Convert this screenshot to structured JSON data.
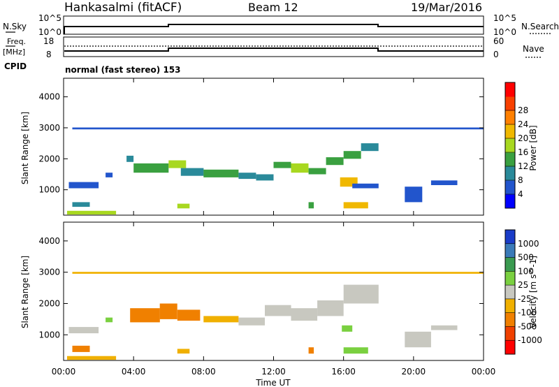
{
  "header": {
    "title": "Hankasalmi (fitACF)",
    "beam": "Beam 12",
    "date": "19/Mar/2016"
  },
  "nsky_panel": {
    "left_label": "N.Sky",
    "left_ticks": [
      "10^5",
      "10^0"
    ],
    "right_label": "N.Search",
    "right_ticks": [
      "10^5",
      "10^0"
    ]
  },
  "freq_panel": {
    "left_label_top": "Freq.",
    "left_label_unit": "[MHz]",
    "left_ticks": [
      "18",
      "8"
    ],
    "right_label": "Nave",
    "right_ticks": [
      "60",
      "0"
    ]
  },
  "cpid_panel": {
    "label": "CPID",
    "mode": "normal (fast stereo) 153"
  },
  "time_axis": {
    "ticks": [
      "00:00",
      "04:00",
      "08:00",
      "12:00",
      "16:00",
      "20:00",
      "00:00"
    ],
    "label": "Time UT"
  },
  "range_axis": {
    "label": "Slant Range [km]",
    "ticks": [
      "1000",
      "2000",
      "3000",
      "4000"
    ]
  },
  "power_colorbar": {
    "label": "Power [dB]",
    "ticks": [
      "4",
      "8",
      "12",
      "16",
      "20",
      "24",
      "28"
    ],
    "colors": [
      "#0000ff",
      "#2255cc",
      "#2a8a9a",
      "#3aa040",
      "#a8d820",
      "#f0b800",
      "#ff8000",
      "#f84000",
      "#ff0000"
    ]
  },
  "velocity_colorbar": {
    "label": "Velocity [m s^-1]",
    "ticks": [
      "1000",
      "500",
      "100",
      "25",
      "-25",
      "-100",
      "-500",
      "-1000"
    ],
    "colors": [
      "#1a3cc8",
      "#3a7ab8",
      "#3a9a50",
      "#7ad040",
      "#c8c8c0",
      "#f0b000",
      "#f08000",
      "#f04000",
      "#ff0000"
    ]
  },
  "chart_data": [
    {
      "type": "heatmap",
      "name_in_plot": "power",
      "x_unit": "hours UT",
      "y_unit": "km",
      "xlim": [
        0,
        24
      ],
      "ylim": [
        180,
        4600
      ],
      "colorbar_label": "Power [dB]",
      "cells": [
        {
          "t0": 0.3,
          "t1": 2.0,
          "r0": 1050,
          "r1": 1250,
          "v": 6
        },
        {
          "t0": 2.4,
          "t1": 2.8,
          "r0": 1400,
          "r1": 1550,
          "v": 5
        },
        {
          "t0": 3.6,
          "t1": 4.0,
          "r0": 1900,
          "r1": 2100,
          "v": 8
        },
        {
          "t0": 4.0,
          "t1": 6.0,
          "r0": 1550,
          "r1": 1850,
          "v": 14
        },
        {
          "t0": 6.0,
          "t1": 7.0,
          "r0": 1700,
          "r1": 1950,
          "v": 16
        },
        {
          "t0": 6.7,
          "t1": 8.0,
          "r0": 1450,
          "r1": 1700,
          "v": 10
        },
        {
          "t0": 8.0,
          "t1": 10.0,
          "r0": 1400,
          "r1": 1650,
          "v": 12
        },
        {
          "t0": 10.0,
          "t1": 11.0,
          "r0": 1350,
          "r1": 1550,
          "v": 9
        },
        {
          "t0": 11.0,
          "t1": 12.0,
          "r0": 1300,
          "r1": 1500,
          "v": 11
        },
        {
          "t0": 12.0,
          "t1": 13.0,
          "r0": 1700,
          "r1": 1900,
          "v": 14
        },
        {
          "t0": 13.0,
          "t1": 14.0,
          "r0": 1550,
          "r1": 1850,
          "v": 17
        },
        {
          "t0": 14.0,
          "t1": 15.0,
          "r0": 1500,
          "r1": 1700,
          "v": 13
        },
        {
          "t0": 15.0,
          "t1": 16.0,
          "r0": 1800,
          "r1": 2050,
          "v": 15
        },
        {
          "t0": 15.8,
          "t1": 16.8,
          "r0": 1100,
          "r1": 1400,
          "v": 20
        },
        {
          "t0": 16.0,
          "t1": 17.0,
          "r0": 2000,
          "r1": 2250,
          "v": 12
        },
        {
          "t0": 17.0,
          "t1": 18.0,
          "r0": 2250,
          "r1": 2500,
          "v": 8
        },
        {
          "t0": 16.5,
          "t1": 18.0,
          "r0": 1050,
          "r1": 1200,
          "v": 7
        },
        {
          "t0": 16.0,
          "t1": 17.4,
          "r0": 400,
          "r1": 600,
          "v": 22
        },
        {
          "t0": 6.5,
          "t1": 7.2,
          "r0": 400,
          "r1": 550,
          "v": 18
        },
        {
          "t0": 14.0,
          "t1": 14.3,
          "r0": 400,
          "r1": 600,
          "v": 12
        },
        {
          "t0": 0.2,
          "t1": 3.0,
          "r0": 200,
          "r1": 320,
          "v": 16
        },
        {
          "t0": 0.5,
          "t1": 1.5,
          "r0": 450,
          "r1": 600,
          "v": 10
        },
        {
          "t0": 19.5,
          "t1": 20.5,
          "r0": 600,
          "r1": 1100,
          "v": 7
        },
        {
          "t0": 21.0,
          "t1": 22.5,
          "r0": 1150,
          "r1": 1300,
          "v": 6
        },
        {
          "t0": 0.5,
          "t1": 24.0,
          "r0": 2950,
          "r1": 3010,
          "v": 4
        }
      ]
    },
    {
      "type": "heatmap",
      "name_in_plot": "velocity",
      "x_unit": "hours UT",
      "y_unit": "km",
      "xlim": [
        0,
        24
      ],
      "ylim": [
        180,
        4600
      ],
      "colorbar_label": "Velocity [m s^-1]",
      "cells": [
        {
          "t0": 0.3,
          "t1": 2.0,
          "r0": 1050,
          "r1": 1250,
          "v": -20
        },
        {
          "t0": 2.4,
          "t1": 2.8,
          "r0": 1400,
          "r1": 1550,
          "v": 30
        },
        {
          "t0": 3.8,
          "t1": 5.5,
          "r0": 1400,
          "r1": 1850,
          "v": -300
        },
        {
          "t0": 5.5,
          "t1": 6.5,
          "r0": 1500,
          "r1": 2000,
          "v": -120
        },
        {
          "t0": 6.5,
          "t1": 7.8,
          "r0": 1450,
          "r1": 1800,
          "v": -400
        },
        {
          "t0": 8.0,
          "t1": 10.0,
          "r0": 1400,
          "r1": 1600,
          "v": -60
        },
        {
          "t0": 10.0,
          "t1": 11.5,
          "r0": 1300,
          "r1": 1550,
          "v": 0
        },
        {
          "t0": 11.5,
          "t1": 13.0,
          "r0": 1600,
          "r1": 1950,
          "v": 5
        },
        {
          "t0": 13.0,
          "t1": 14.5,
          "r0": 1450,
          "r1": 1850,
          "v": -10
        },
        {
          "t0": 14.5,
          "t1": 16.0,
          "r0": 1600,
          "r1": 2100,
          "v": 10
        },
        {
          "t0": 16.0,
          "t1": 18.0,
          "r0": 2000,
          "r1": 2600,
          "v": 0
        },
        {
          "t0": 16.0,
          "t1": 17.4,
          "r0": 400,
          "r1": 600,
          "v": 60
        },
        {
          "t0": 15.9,
          "t1": 16.5,
          "r0": 1100,
          "r1": 1300,
          "v": 70
        },
        {
          "t0": 6.5,
          "t1": 7.2,
          "r0": 400,
          "r1": 550,
          "v": -60
        },
        {
          "t0": 14.0,
          "t1": 14.3,
          "r0": 400,
          "r1": 600,
          "v": -150
        },
        {
          "t0": 0.2,
          "t1": 3.0,
          "r0": 200,
          "r1": 320,
          "v": -30
        },
        {
          "t0": 0.5,
          "t1": 1.5,
          "r0": 450,
          "r1": 650,
          "v": -200
        },
        {
          "t0": 19.5,
          "t1": 21.0,
          "r0": 600,
          "r1": 1100,
          "v": 0
        },
        {
          "t0": 21.0,
          "t1": 22.5,
          "r0": 1150,
          "r1": 1300,
          "v": -10
        },
        {
          "t0": 0.5,
          "t1": 24.0,
          "r0": 2950,
          "r1": 3010,
          "v": -90
        }
      ]
    }
  ]
}
